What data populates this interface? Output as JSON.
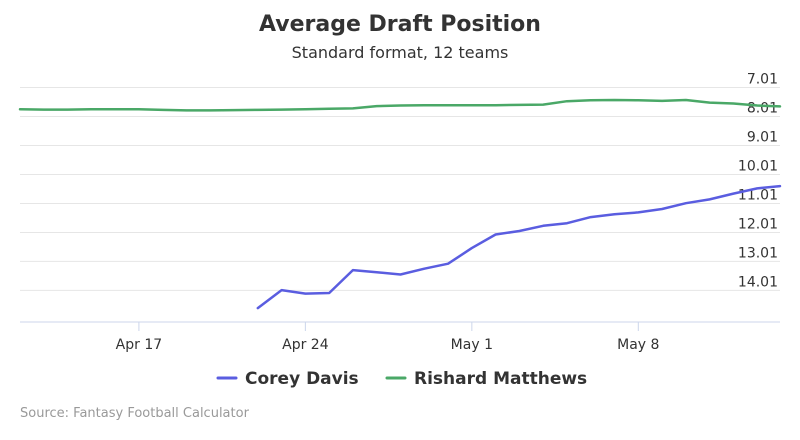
{
  "chart_data": {
    "type": "line",
    "title": "Average Draft Position",
    "subtitle": "Standard format, 12 teams",
    "x_ticks": [
      "Apr 17",
      "Apr 24",
      "May 1",
      "May 8"
    ],
    "y_ticks": [
      "7.01",
      "8.01",
      "9.01",
      "10.01",
      "11.01",
      "12.01",
      "13.01",
      "14.01"
    ],
    "y_tick_values": [
      7.01,
      8.01,
      9.01,
      10.01,
      11.01,
      12.01,
      13.01,
      14.01
    ],
    "xlim": [
      "2017-04-12",
      "2017-05-13"
    ],
    "ylim": [
      6.75,
      15.1
    ],
    "y_reversed": true,
    "grid": true,
    "legend_position": "bottom",
    "series": [
      {
        "name": "Rishard Matthews",
        "color": "#4aa867",
        "points": [
          [
            "2017-04-12",
            7.76
          ],
          [
            "2017-04-13",
            7.77
          ],
          [
            "2017-04-14",
            7.77
          ],
          [
            "2017-04-15",
            7.76
          ],
          [
            "2017-04-16",
            7.76
          ],
          [
            "2017-04-17",
            7.76
          ],
          [
            "2017-04-18",
            7.78
          ],
          [
            "2017-04-19",
            7.8
          ],
          [
            "2017-04-20",
            7.8
          ],
          [
            "2017-04-21",
            7.79
          ],
          [
            "2017-04-22",
            7.78
          ],
          [
            "2017-04-23",
            7.77
          ],
          [
            "2017-04-24",
            7.76
          ],
          [
            "2017-04-25",
            7.74
          ],
          [
            "2017-04-26",
            7.73
          ],
          [
            "2017-04-27",
            7.65
          ],
          [
            "2017-04-28",
            7.63
          ],
          [
            "2017-04-29",
            7.62
          ],
          [
            "2017-04-30",
            7.62
          ],
          [
            "2017-05-01",
            7.62
          ],
          [
            "2017-05-02",
            7.62
          ],
          [
            "2017-05-03",
            7.61
          ],
          [
            "2017-05-04",
            7.6
          ],
          [
            "2017-05-05",
            7.48
          ],
          [
            "2017-05-06",
            7.45
          ],
          [
            "2017-05-07",
            7.44
          ],
          [
            "2017-05-08",
            7.45
          ],
          [
            "2017-05-09",
            7.47
          ],
          [
            "2017-05-10",
            7.44
          ],
          [
            "2017-05-11",
            7.53
          ],
          [
            "2017-05-12",
            7.56
          ],
          [
            "2017-05-13",
            7.63
          ],
          [
            "2017-05-13T23:00",
            7.66
          ]
        ]
      },
      {
        "name": "Corey Davis",
        "color": "#5a5de0",
        "points": [
          [
            "2017-04-22",
            14.62
          ],
          [
            "2017-04-23",
            14.0
          ],
          [
            "2017-04-24",
            14.12
          ],
          [
            "2017-04-25",
            14.1
          ],
          [
            "2017-04-26",
            13.31
          ],
          [
            "2017-04-27",
            13.38
          ],
          [
            "2017-04-28",
            13.46
          ],
          [
            "2017-04-29",
            13.26
          ],
          [
            "2017-04-30",
            13.09
          ],
          [
            "2017-05-01",
            12.55
          ],
          [
            "2017-05-02",
            12.08
          ],
          [
            "2017-05-03",
            11.96
          ],
          [
            "2017-05-04",
            11.78
          ],
          [
            "2017-05-05",
            11.69
          ],
          [
            "2017-05-06",
            11.48
          ],
          [
            "2017-05-07",
            11.38
          ],
          [
            "2017-05-08",
            11.32
          ],
          [
            "2017-05-09",
            11.2
          ],
          [
            "2017-05-10",
            11.0
          ],
          [
            "2017-05-11",
            10.87
          ],
          [
            "2017-05-12",
            10.67
          ],
          [
            "2017-05-13",
            10.49
          ],
          [
            "2017-05-13T23:00",
            10.41
          ]
        ]
      }
    ]
  },
  "colors": {
    "grid": "#e6e6e6",
    "axis": "#ccd6eb",
    "text": "#333333",
    "source": "#999999"
  },
  "source": "Source: Fantasy Football Calculator"
}
